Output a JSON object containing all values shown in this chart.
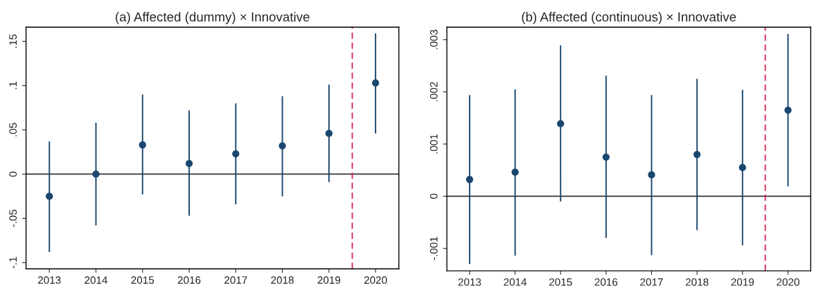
{
  "chart_data": [
    {
      "type": "scatter",
      "title": "(a) Affected (dummy) × Innovative",
      "x": [
        2013,
        2014,
        2015,
        2016,
        2017,
        2018,
        2019,
        2020
      ],
      "xlim": [
        2012.5,
        2020.5
      ],
      "xticks": [
        2013,
        2014,
        2015,
        2016,
        2017,
        2018,
        2019,
        2020
      ],
      "ylim": [
        -0.107,
        0.166
      ],
      "yticks": [
        {
          "value": -0.1,
          "label": "-.1"
        },
        {
          "value": -0.05,
          "label": "-.05"
        },
        {
          "value": 0,
          "label": "0"
        },
        {
          "value": 0.05,
          "label": ".05"
        },
        {
          "value": 0.1,
          "label": ".1"
        },
        {
          "value": 0.15,
          "label": ".15"
        }
      ],
      "grid": false,
      "marker": "circle",
      "series": [
        {
          "color": "#1a476f",
          "values": [
            -0.025,
            0,
            0.033,
            0.012,
            0.023,
            0.032,
            0.046,
            0.103
          ],
          "errors": [
            [
              -0.088,
              0.037
            ],
            [
              -0.058,
              0.058
            ],
            [
              -0.023,
              0.09
            ],
            [
              -0.047,
              0.072
            ],
            [
              -0.034,
              0.08
            ],
            [
              -0.025,
              0.088
            ],
            [
              -0.009,
              0.101
            ],
            [
              0.046,
              0.159
            ]
          ]
        }
      ],
      "ref_lines": [
        {
          "axis": "y",
          "value": 0,
          "color": "#333333",
          "line_style": "solid"
        },
        {
          "axis": "x",
          "value": 2019.5,
          "color": "#d6204a",
          "line_style": "dashed"
        }
      ]
    },
    {
      "type": "scatter",
      "title": "(b) Affected (continuous) × Innovative",
      "x": [
        2013,
        2014,
        2015,
        2016,
        2017,
        2018,
        2019,
        2020
      ],
      "xlim": [
        2012.5,
        2020.5
      ],
      "xticks": [
        2013,
        2014,
        2015,
        2016,
        2017,
        2018,
        2019,
        2020
      ],
      "ylim": [
        -0.00143,
        0.00324
      ],
      "yticks": [
        {
          "value": -0.001,
          "label": "-.001"
        },
        {
          "value": 0,
          "label": "0"
        },
        {
          "value": 0.001,
          "label": ".001"
        },
        {
          "value": 0.002,
          "label": ".002"
        },
        {
          "value": 0.003,
          "label": ".003"
        }
      ],
      "grid": false,
      "marker": "circle",
      "series": [
        {
          "color": "#1a476f",
          "values": [
            0.00032,
            0.00046,
            0.00139,
            0.00075,
            0.00041,
            0.0008,
            0.00055,
            0.00165
          ],
          "errors": [
            [
              -0.0013,
              0.00194
            ],
            [
              -0.00114,
              0.00205
            ],
            [
              -0.0001,
              0.00289
            ],
            [
              -0.0008,
              0.00231
            ],
            [
              -0.00113,
              0.00194
            ],
            [
              -0.00065,
              0.00225
            ],
            [
              -0.00094,
              0.00204
            ],
            [
              0.00019,
              0.00311
            ]
          ]
        }
      ],
      "ref_lines": [
        {
          "axis": "y",
          "value": 0,
          "color": "#333333",
          "line_style": "solid"
        },
        {
          "axis": "x",
          "value": 2019.5,
          "color": "#d6204a",
          "line_style": "dashed"
        }
      ]
    }
  ]
}
